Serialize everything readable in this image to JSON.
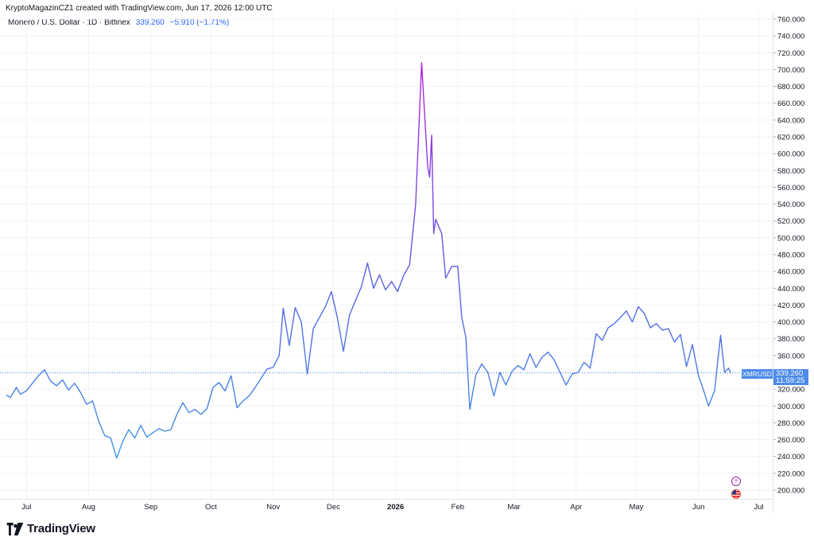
{
  "header": {
    "created": "KryptoMagazinCZ1 created with TradingView.com, Jun 17, 2026 12:00 UTC",
    "symbol": "Monero / U.S. Dollar · 1D · Bitfinex",
    "price": "339.260",
    "change": "−5.910 (−1.71%)"
  },
  "price_tag": {
    "ticker": "XMRUSD",
    "value": "339.260",
    "countdown": "11:59:25"
  },
  "footer": {
    "brand": "TradingView"
  },
  "icons": [
    "bolt-icon",
    "us-flag-icon"
  ],
  "colors": {
    "line_low": "#3a9de8",
    "line_mid": "#5b63e6",
    "line_high": "#b11fe0",
    "last_price": "#4c8be8"
  },
  "chart_data": {
    "type": "line",
    "title": "",
    "xlabel": "",
    "ylabel": "",
    "x_ticks": [
      {
        "label": "Jul",
        "date": "2025-07-01"
      },
      {
        "label": "Aug",
        "date": "2025-08-01"
      },
      {
        "label": "Sep",
        "date": "2025-09-01"
      },
      {
        "label": "Oct",
        "date": "2025-10-01"
      },
      {
        "label": "Nov",
        "date": "2025-11-01"
      },
      {
        "label": "Dec",
        "date": "2025-12-01"
      },
      {
        "label": "2026",
        "date": "2026-01-01"
      },
      {
        "label": "Feb",
        "date": "2026-02-01"
      },
      {
        "label": "Mar",
        "date": "2026-03-01"
      },
      {
        "label": "Apr",
        "date": "2026-04-01"
      },
      {
        "label": "May",
        "date": "2026-05-01"
      },
      {
        "label": "Jun",
        "date": "2026-06-01"
      },
      {
        "label": "Jul",
        "date": "2026-07-01"
      }
    ],
    "y_ticks": [
      "200.000",
      "220.000",
      "240.000",
      "260.000",
      "280.000",
      "300.000",
      "320.000",
      "340.000",
      "360.000",
      "380.000",
      "400.000",
      "420.000",
      "440.000",
      "460.000",
      "480.000",
      "500.000",
      "520.000",
      "540.000",
      "560.000",
      "580.000",
      "600.000",
      "620.000",
      "640.000",
      "660.000",
      "680.000",
      "700.000",
      "720.000",
      "740.000",
      "760.000"
    ],
    "ylim": [
      195,
      763
    ],
    "xlim": [
      "2025-06-21",
      "2026-07-04"
    ],
    "last_price": 339.26,
    "grid": true,
    "series": [
      {
        "points": [
          [
            "2025-06-21",
            313
          ],
          [
            "2025-06-23",
            310
          ],
          [
            "2025-06-26",
            322
          ],
          [
            "2025-06-28",
            314
          ],
          [
            "2025-07-01",
            318
          ],
          [
            "2025-07-04",
            327
          ],
          [
            "2025-07-07",
            336
          ],
          [
            "2025-07-10",
            343
          ],
          [
            "2025-07-13",
            330
          ],
          [
            "2025-07-16",
            324
          ],
          [
            "2025-07-19",
            331
          ],
          [
            "2025-07-22",
            319
          ],
          [
            "2025-07-25",
            327
          ],
          [
            "2025-07-28",
            316
          ],
          [
            "2025-07-31",
            302
          ],
          [
            "2025-08-03",
            306
          ],
          [
            "2025-08-06",
            282
          ],
          [
            "2025-08-09",
            265
          ],
          [
            "2025-08-12",
            262
          ],
          [
            "2025-08-15",
            238
          ],
          [
            "2025-08-18",
            258
          ],
          [
            "2025-08-21",
            272
          ],
          [
            "2025-08-24",
            262
          ],
          [
            "2025-08-27",
            277
          ],
          [
            "2025-08-30",
            263
          ],
          [
            "2025-09-02",
            268
          ],
          [
            "2025-09-05",
            273
          ],
          [
            "2025-09-08",
            270
          ],
          [
            "2025-09-11",
            272
          ],
          [
            "2025-09-14",
            290
          ],
          [
            "2025-09-17",
            304
          ],
          [
            "2025-09-20",
            292
          ],
          [
            "2025-09-23",
            296
          ],
          [
            "2025-09-26",
            290
          ],
          [
            "2025-09-29",
            297
          ],
          [
            "2025-10-02",
            322
          ],
          [
            "2025-10-05",
            328
          ],
          [
            "2025-10-08",
            318
          ],
          [
            "2025-10-11",
            336
          ],
          [
            "2025-10-14",
            298
          ],
          [
            "2025-10-17",
            306
          ],
          [
            "2025-10-20",
            312
          ],
          [
            "2025-10-23",
            322
          ],
          [
            "2025-10-26",
            333
          ],
          [
            "2025-10-29",
            344
          ],
          [
            "2025-11-01",
            346
          ],
          [
            "2025-11-04",
            360
          ],
          [
            "2025-11-06",
            416
          ],
          [
            "2025-11-09",
            372
          ],
          [
            "2025-11-12",
            417
          ],
          [
            "2025-11-15",
            400
          ],
          [
            "2025-11-18",
            338
          ],
          [
            "2025-11-21",
            392
          ],
          [
            "2025-11-24",
            405
          ],
          [
            "2025-11-27",
            418
          ],
          [
            "2025-11-30",
            436
          ],
          [
            "2025-12-03",
            405
          ],
          [
            "2025-12-06",
            365
          ],
          [
            "2025-12-09",
            408
          ],
          [
            "2025-12-12",
            425
          ],
          [
            "2025-12-15",
            442
          ],
          [
            "2025-12-18",
            470
          ],
          [
            "2025-12-21",
            440
          ],
          [
            "2025-12-24",
            456
          ],
          [
            "2025-12-27",
            438
          ],
          [
            "2025-12-30",
            448
          ],
          [
            "2026-01-02",
            436
          ],
          [
            "2026-01-05",
            455
          ],
          [
            "2026-01-08",
            468
          ],
          [
            "2026-01-11",
            540
          ],
          [
            "2026-01-14",
            708
          ],
          [
            "2026-01-17",
            585
          ],
          [
            "2026-01-18",
            572
          ],
          [
            "2026-01-19",
            622
          ],
          [
            "2026-01-20",
            505
          ],
          [
            "2026-01-21",
            522
          ],
          [
            "2026-01-24",
            505
          ],
          [
            "2026-01-26",
            452
          ],
          [
            "2026-01-29",
            466
          ],
          [
            "2026-02-01",
            466
          ],
          [
            "2026-02-03",
            405
          ],
          [
            "2026-02-05",
            382
          ],
          [
            "2026-02-07",
            296
          ],
          [
            "2026-02-10",
            337
          ],
          [
            "2026-02-13",
            350
          ],
          [
            "2026-02-16",
            340
          ],
          [
            "2026-02-19",
            312
          ],
          [
            "2026-02-22",
            340
          ],
          [
            "2026-02-25",
            325
          ],
          [
            "2026-02-28",
            341
          ],
          [
            "2026-03-03",
            348
          ],
          [
            "2026-03-06",
            343
          ],
          [
            "2026-03-09",
            362
          ],
          [
            "2026-03-12",
            346
          ],
          [
            "2026-03-15",
            358
          ],
          [
            "2026-03-18",
            364
          ],
          [
            "2026-03-21",
            355
          ],
          [
            "2026-03-24",
            340
          ],
          [
            "2026-03-27",
            325
          ],
          [
            "2026-03-30",
            338
          ],
          [
            "2026-04-02",
            340
          ],
          [
            "2026-04-05",
            352
          ],
          [
            "2026-04-08",
            345
          ],
          [
            "2026-04-11",
            386
          ],
          [
            "2026-04-14",
            378
          ],
          [
            "2026-04-17",
            393
          ],
          [
            "2026-04-20",
            398
          ],
          [
            "2026-04-23",
            405
          ],
          [
            "2026-04-26",
            413
          ],
          [
            "2026-04-29",
            400
          ],
          [
            "2026-05-02",
            418
          ],
          [
            "2026-05-05",
            410
          ],
          [
            "2026-05-08",
            393
          ],
          [
            "2026-05-11",
            398
          ],
          [
            "2026-05-14",
            390
          ],
          [
            "2026-05-17",
            392
          ],
          [
            "2026-05-20",
            376
          ],
          [
            "2026-05-23",
            385
          ],
          [
            "2026-05-26",
            347
          ],
          [
            "2026-05-29",
            373
          ],
          [
            "2026-06-01",
            336
          ],
          [
            "2026-06-04",
            315
          ],
          [
            "2026-06-06",
            300
          ],
          [
            "2026-06-09",
            318
          ],
          [
            "2026-06-12",
            384
          ],
          [
            "2026-06-14",
            340
          ],
          [
            "2026-06-16",
            345
          ],
          [
            "2026-06-17",
            339.26
          ]
        ]
      }
    ]
  }
}
